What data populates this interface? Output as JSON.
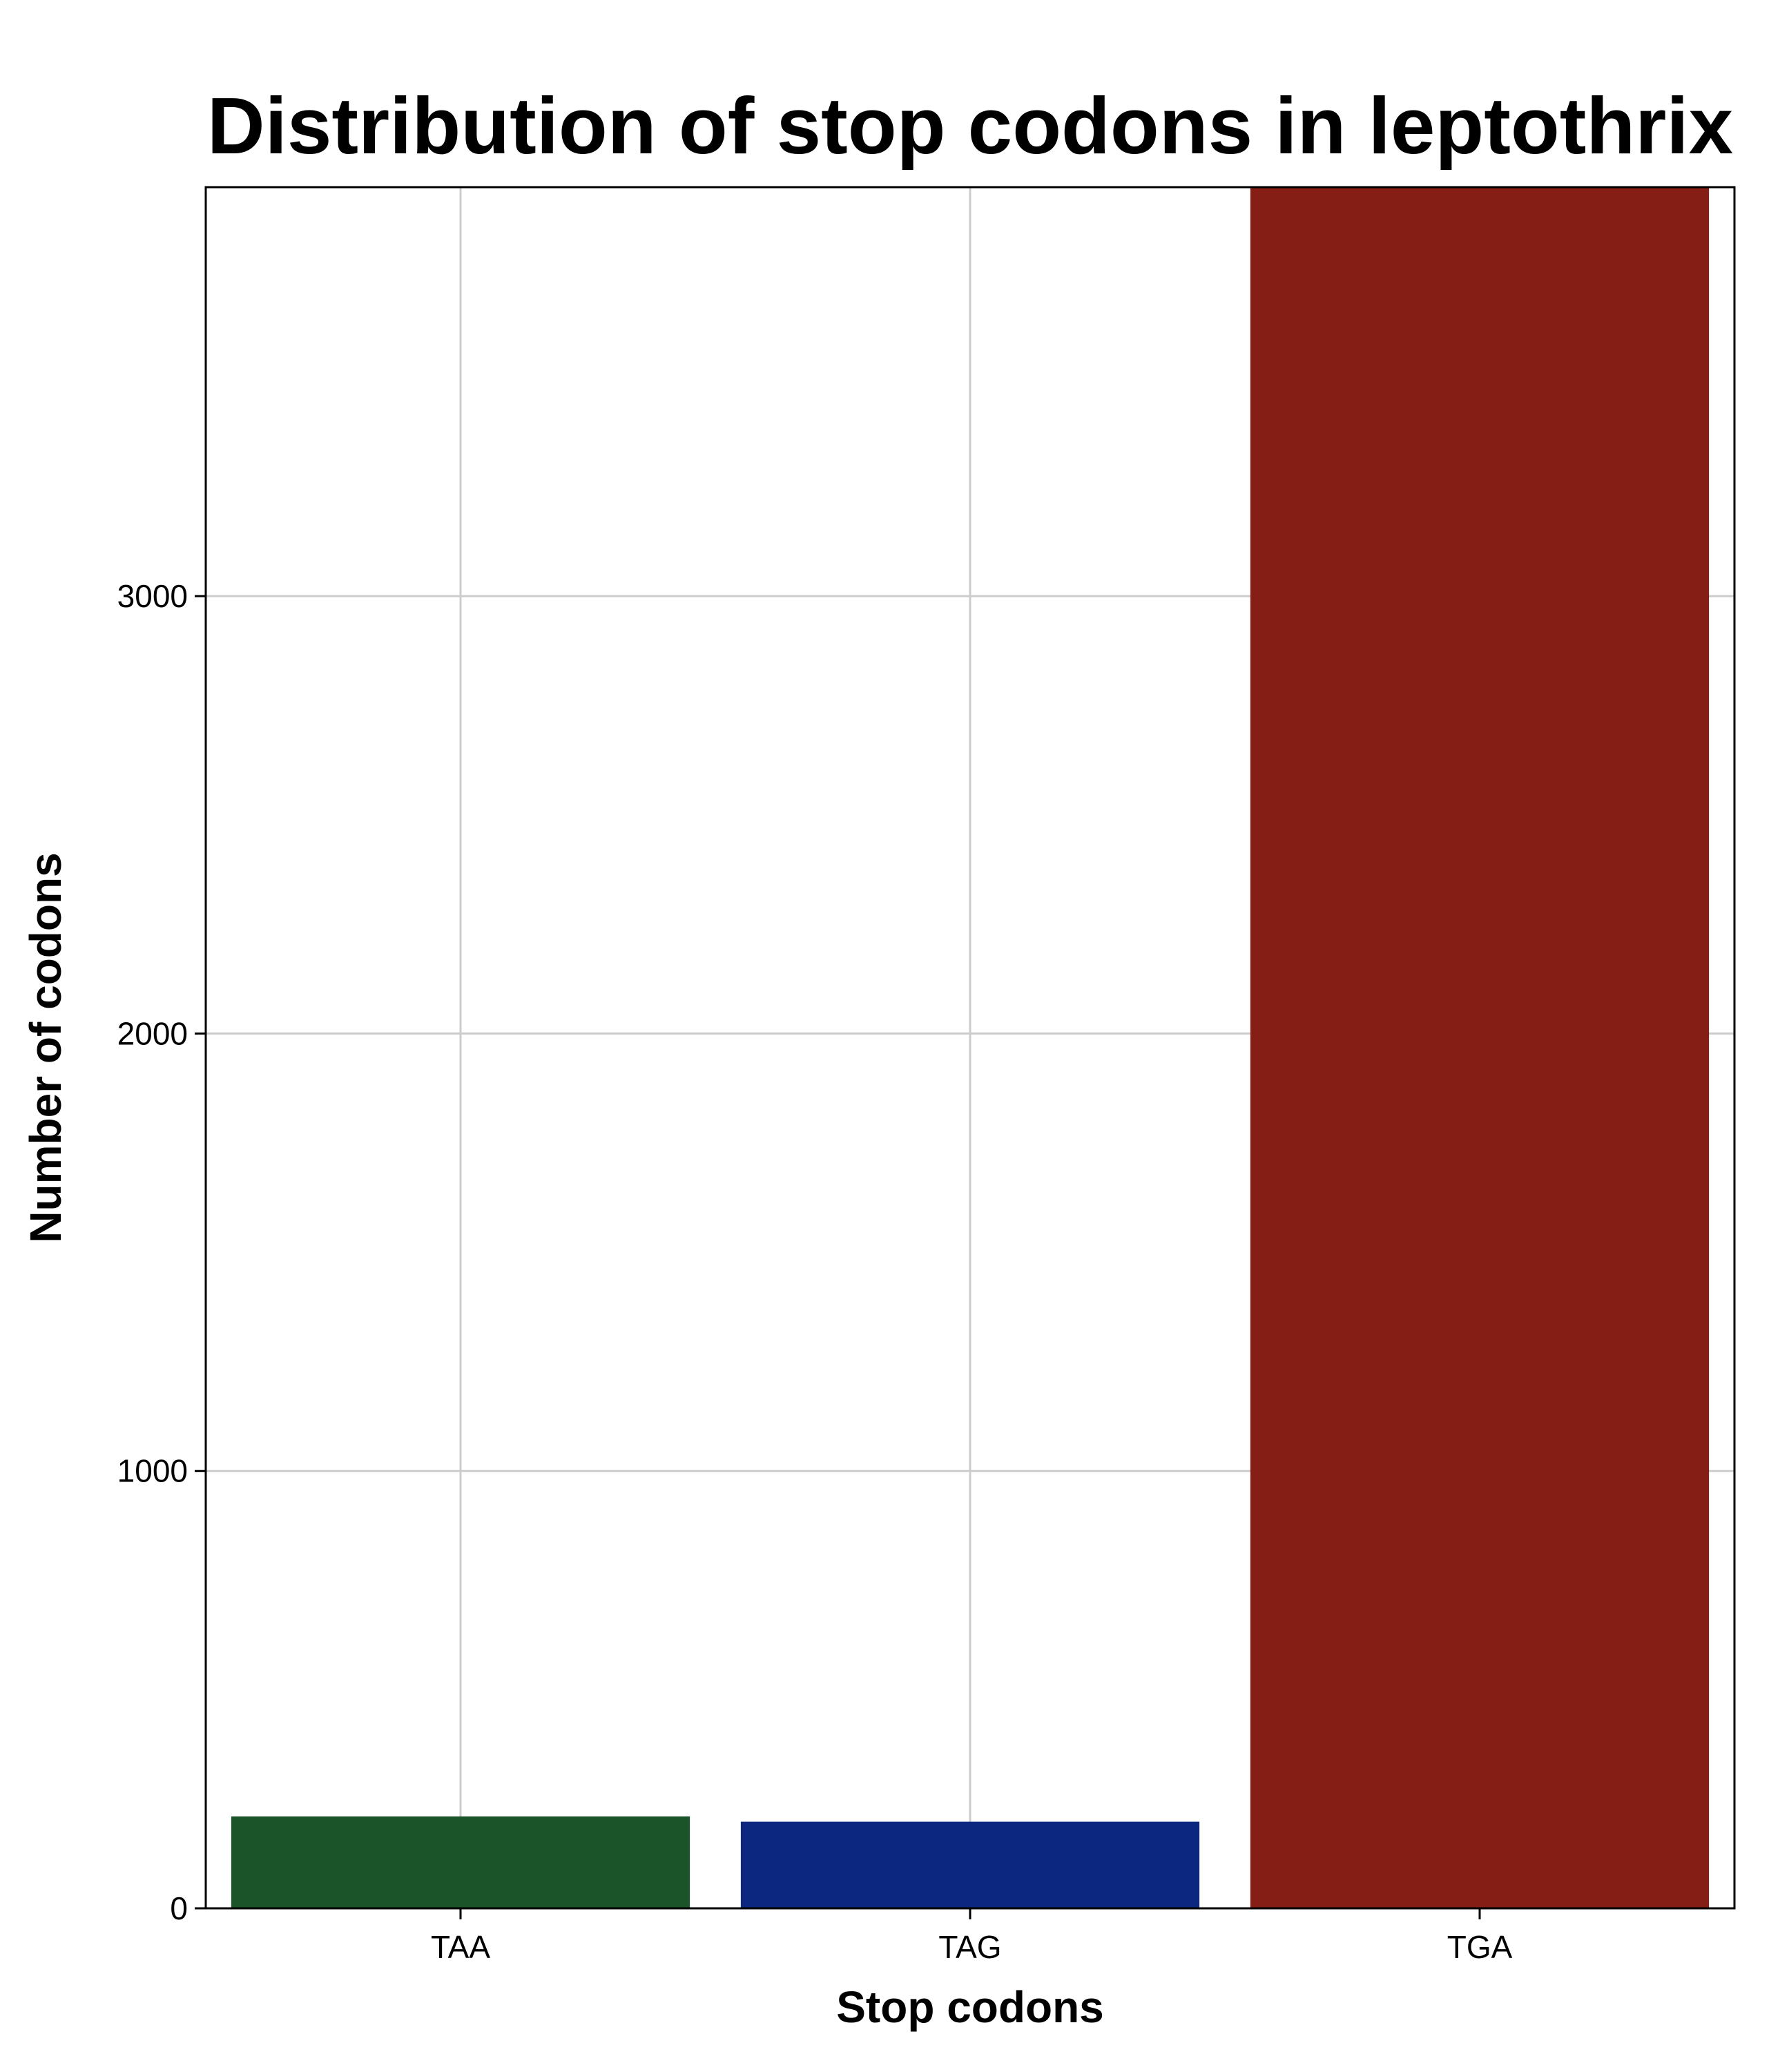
{
  "chart_data": {
    "type": "bar",
    "title": "Distribution of stop codons in leptothrix",
    "xlabel": "Stop codons",
    "ylabel": "Number of codons",
    "categories": [
      "TAA",
      "TAG",
      "TGA"
    ],
    "values": [
      210,
      198,
      3935
    ],
    "colors": [
      "#1a5428",
      "#0b2780",
      "#851e14"
    ],
    "ylim": [
      0,
      3935
    ],
    "yticks": [
      0,
      1000,
      2000,
      3000
    ],
    "ytick_labels": [
      "0",
      "1000",
      "2000",
      "3000"
    ],
    "grid": true,
    "legend": "none"
  }
}
